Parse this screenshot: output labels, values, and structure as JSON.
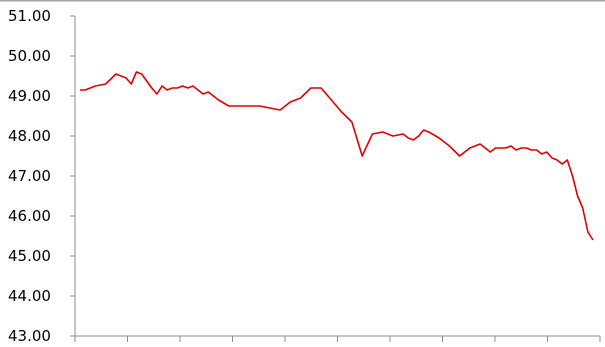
{
  "chart_data": {
    "type": "line",
    "title": "",
    "xlabel": "",
    "ylabel": "",
    "ylim": [
      43.0,
      51.0
    ],
    "yticks": [
      "51.00",
      "50.00",
      "49.00",
      "48.00",
      "47.00",
      "46.00",
      "45.00",
      "44.00",
      "43.00"
    ],
    "x_tick_marks": 10,
    "x_tick_labels": [],
    "grid": false,
    "legend": "none",
    "colors": {
      "series": "#e00000",
      "axis": "#8c8c8c",
      "top_border": "#a6a6a6"
    },
    "series": [
      {
        "x": [
          0,
          1,
          3,
          5,
          7,
          9,
          10,
          11,
          12,
          14,
          15,
          16,
          17,
          18,
          19,
          20,
          21,
          22,
          23,
          24,
          25,
          27,
          29,
          31,
          33,
          35,
          37,
          39,
          41,
          43,
          45,
          47,
          49,
          51,
          53,
          55,
          57,
          59,
          61,
          63,
          64,
          65,
          66,
          67,
          68,
          70,
          72,
          74,
          76,
          78,
          80,
          81,
          82,
          83,
          84,
          85,
          86,
          87,
          88,
          89,
          90,
          91,
          92,
          93,
          94,
          95,
          96,
          97,
          98,
          99,
          100
        ],
        "values": [
          49.15,
          49.15,
          49.25,
          49.3,
          49.55,
          49.45,
          49.3,
          49.6,
          49.55,
          49.2,
          49.05,
          49.25,
          49.15,
          49.2,
          49.2,
          49.25,
          49.2,
          49.25,
          49.15,
          49.05,
          49.1,
          48.9,
          48.75,
          48.75,
          48.75,
          48.75,
          48.7,
          48.65,
          48.85,
          48.95,
          49.2,
          49.2,
          48.9,
          48.6,
          48.35,
          47.5,
          48.05,
          48.1,
          48.0,
          48.05,
          47.95,
          47.9,
          48.0,
          48.15,
          48.1,
          47.95,
          47.75,
          47.5,
          47.7,
          47.8,
          47.6,
          47.7,
          47.7,
          47.7,
          47.75,
          47.65,
          47.7,
          47.7,
          47.65,
          47.65,
          47.55,
          47.6,
          47.45,
          47.4,
          47.3,
          47.4,
          47.0,
          46.5,
          46.2,
          45.6,
          45.4
        ]
      }
    ]
  }
}
